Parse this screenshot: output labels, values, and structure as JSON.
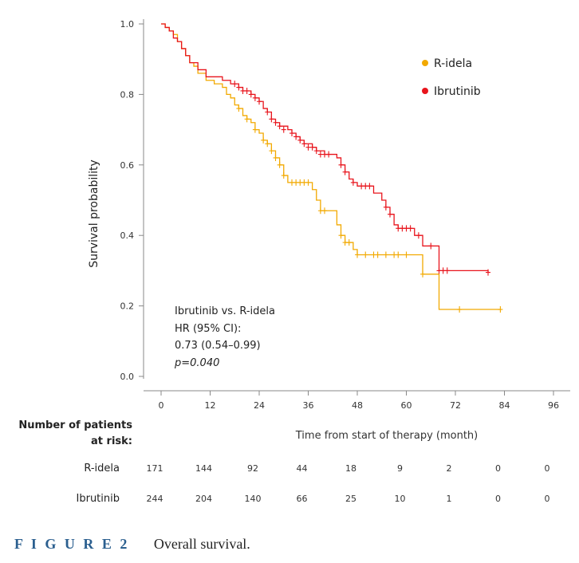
{
  "chart_data": {
    "type": "line",
    "subtype": "kaplan-meier",
    "ylabel": "Survival probability",
    "xlabel": "Time from start of therapy (month)",
    "xlim": [
      0,
      96
    ],
    "ylim": [
      0,
      1.0
    ],
    "x_ticks": [
      0,
      12,
      24,
      36,
      48,
      60,
      72,
      84,
      96
    ],
    "y_ticks": [
      "0.0",
      "0.2",
      "0.4",
      "0.6",
      "0.8",
      "1.0"
    ],
    "legend": [
      {
        "name": "R-idela",
        "color": "#F2A900"
      },
      {
        "name": "Ibrutinib",
        "color": "#E8141C"
      }
    ],
    "series": [
      {
        "name": "R-idela",
        "color": "#F2A900",
        "steps": [
          [
            0,
            1.0
          ],
          [
            1,
            0.99
          ],
          [
            2,
            0.98
          ],
          [
            3,
            0.97
          ],
          [
            4,
            0.95
          ],
          [
            5,
            0.93
          ],
          [
            6,
            0.91
          ],
          [
            7,
            0.89
          ],
          [
            8,
            0.88
          ],
          [
            9,
            0.86
          ],
          [
            11,
            0.84
          ],
          [
            13,
            0.83
          ],
          [
            15,
            0.82
          ],
          [
            16,
            0.8
          ],
          [
            17,
            0.79
          ],
          [
            18,
            0.77
          ],
          [
            19,
            0.76
          ],
          [
            20,
            0.74
          ],
          [
            21,
            0.73
          ],
          [
            22,
            0.72
          ],
          [
            23,
            0.7
          ],
          [
            24,
            0.69
          ],
          [
            25,
            0.67
          ],
          [
            26,
            0.66
          ],
          [
            27,
            0.64
          ],
          [
            28,
            0.62
          ],
          [
            29,
            0.6
          ],
          [
            30,
            0.57
          ],
          [
            31,
            0.55
          ],
          [
            37,
            0.53
          ],
          [
            38,
            0.5
          ],
          [
            39,
            0.47
          ],
          [
            43,
            0.43
          ],
          [
            44,
            0.4
          ],
          [
            45,
            0.38
          ],
          [
            47,
            0.36
          ],
          [
            48,
            0.345
          ],
          [
            64,
            0.29
          ],
          [
            68,
            0.19
          ],
          [
            83,
            0.19
          ]
        ],
        "censored": [
          [
            19,
            0.76
          ],
          [
            21,
            0.73
          ],
          [
            23,
            0.7
          ],
          [
            25,
            0.67
          ],
          [
            26,
            0.66
          ],
          [
            27,
            0.64
          ],
          [
            28,
            0.62
          ],
          [
            29,
            0.6
          ],
          [
            30,
            0.57
          ],
          [
            32,
            0.55
          ],
          [
            33,
            0.55
          ],
          [
            34,
            0.55
          ],
          [
            35,
            0.55
          ],
          [
            36,
            0.55
          ],
          [
            39,
            0.47
          ],
          [
            40,
            0.47
          ],
          [
            44,
            0.4
          ],
          [
            45,
            0.38
          ],
          [
            46,
            0.38
          ],
          [
            48,
            0.345
          ],
          [
            50,
            0.345
          ],
          [
            52,
            0.345
          ],
          [
            53,
            0.345
          ],
          [
            55,
            0.345
          ],
          [
            57,
            0.345
          ],
          [
            58,
            0.345
          ],
          [
            60,
            0.345
          ],
          [
            64,
            0.29
          ],
          [
            73,
            0.19
          ],
          [
            83,
            0.19
          ]
        ]
      },
      {
        "name": "Ibrutinib",
        "color": "#E8141C",
        "steps": [
          [
            0,
            1.0
          ],
          [
            1,
            0.99
          ],
          [
            2,
            0.98
          ],
          [
            3,
            0.96
          ],
          [
            4,
            0.95
          ],
          [
            5,
            0.93
          ],
          [
            6,
            0.91
          ],
          [
            7,
            0.89
          ],
          [
            9,
            0.87
          ],
          [
            11,
            0.85
          ],
          [
            15,
            0.84
          ],
          [
            17,
            0.83
          ],
          [
            19,
            0.82
          ],
          [
            20,
            0.81
          ],
          [
            22,
            0.8
          ],
          [
            23,
            0.79
          ],
          [
            24,
            0.78
          ],
          [
            25,
            0.76
          ],
          [
            26,
            0.75
          ],
          [
            27,
            0.73
          ],
          [
            28,
            0.72
          ],
          [
            29,
            0.71
          ],
          [
            31,
            0.7
          ],
          [
            32,
            0.69
          ],
          [
            33,
            0.68
          ],
          [
            34,
            0.67
          ],
          [
            35,
            0.66
          ],
          [
            37,
            0.65
          ],
          [
            38,
            0.64
          ],
          [
            40,
            0.63
          ],
          [
            42,
            0.63
          ],
          [
            43,
            0.62
          ],
          [
            44,
            0.6
          ],
          [
            45,
            0.58
          ],
          [
            46,
            0.56
          ],
          [
            47,
            0.55
          ],
          [
            48,
            0.54
          ],
          [
            52,
            0.52
          ],
          [
            54,
            0.5
          ],
          [
            55,
            0.48
          ],
          [
            56,
            0.46
          ],
          [
            57,
            0.43
          ],
          [
            58,
            0.42
          ],
          [
            62,
            0.4
          ],
          [
            64,
            0.37
          ],
          [
            68,
            0.3
          ],
          [
            80,
            0.295
          ]
        ],
        "censored": [
          [
            18,
            0.83
          ],
          [
            19,
            0.82
          ],
          [
            20,
            0.81
          ],
          [
            21,
            0.81
          ],
          [
            22,
            0.8
          ],
          [
            23,
            0.79
          ],
          [
            24,
            0.78
          ],
          [
            26,
            0.75
          ],
          [
            27,
            0.73
          ],
          [
            28,
            0.72
          ],
          [
            29,
            0.71
          ],
          [
            30,
            0.7
          ],
          [
            32,
            0.69
          ],
          [
            33,
            0.68
          ],
          [
            34,
            0.67
          ],
          [
            35,
            0.66
          ],
          [
            36,
            0.65
          ],
          [
            37,
            0.65
          ],
          [
            38,
            0.64
          ],
          [
            39,
            0.63
          ],
          [
            40,
            0.63
          ],
          [
            41,
            0.63
          ],
          [
            44,
            0.6
          ],
          [
            45,
            0.58
          ],
          [
            47,
            0.55
          ],
          [
            49,
            0.54
          ],
          [
            50,
            0.54
          ],
          [
            51,
            0.54
          ],
          [
            55,
            0.48
          ],
          [
            56,
            0.46
          ],
          [
            58,
            0.42
          ],
          [
            59,
            0.42
          ],
          [
            60,
            0.42
          ],
          [
            61,
            0.42
          ],
          [
            63,
            0.4
          ],
          [
            66,
            0.37
          ],
          [
            68,
            0.3
          ],
          [
            69,
            0.3
          ],
          [
            70,
            0.3
          ],
          [
            80,
            0.295
          ]
        ]
      }
    ],
    "annotation": [
      "Ibrutinib vs. R-idela",
      "HR (95% CI):",
      "0.73 (0.54–0.99)",
      "p=0.040"
    ],
    "risk_table": {
      "title_line1": "Number of patients",
      "title_line2": "at risk:",
      "rows": [
        {
          "label": "R-idela",
          "values": [
            "171",
            "144",
            "92",
            "44",
            "18",
            "9",
            "2",
            "0",
            "0"
          ]
        },
        {
          "label": "Ibrutinib",
          "values": [
            "244",
            "204",
            "140",
            "66",
            "25",
            "10",
            "1",
            "0",
            "0"
          ]
        }
      ]
    }
  },
  "caption": {
    "figure_label": "F I G U R E  2",
    "text": "Overall survival."
  }
}
